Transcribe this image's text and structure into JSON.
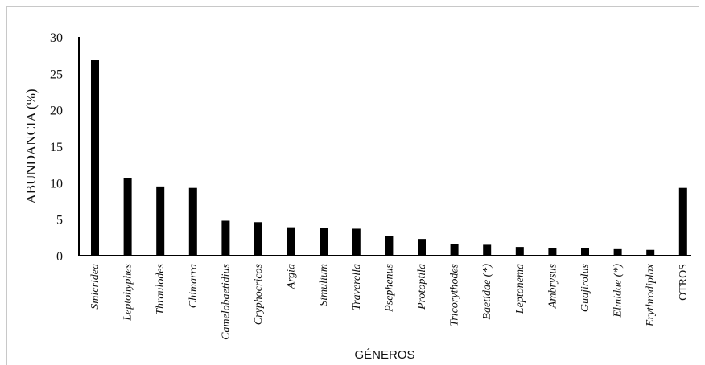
{
  "chart_data": {
    "type": "bar",
    "title": "",
    "xlabel": "GÉNEROS",
    "ylabel": "ABUNDANCIA (%)",
    "ylim": [
      0,
      30
    ],
    "yticks": [
      0,
      5,
      10,
      15,
      20,
      25,
      30
    ],
    "grid": false,
    "legend": "none",
    "bar_color": "#000000",
    "categories": [
      "Smicridea",
      "Leptohyphes",
      "Thraulodes",
      "Chimarra",
      "Camelobaetidius",
      "Cryphocricos",
      "Argia",
      "Simulium",
      "Traverella",
      "Psephenus",
      "Protoptila",
      "Tricorythodes",
      "Baetidae (*)",
      "Leptonema",
      "Ambrysus",
      "Guajirolus",
      "Elmidae (*)",
      "Erythrodiplax",
      "OTROS"
    ],
    "italic": [
      true,
      true,
      true,
      true,
      true,
      true,
      true,
      true,
      true,
      true,
      true,
      true,
      true,
      true,
      true,
      true,
      true,
      true,
      false
    ],
    "values": [
      26.8,
      10.6,
      9.5,
      9.3,
      4.8,
      4.6,
      3.9,
      3.8,
      3.7,
      2.7,
      2.3,
      1.6,
      1.5,
      1.2,
      1.1,
      1.0,
      0.9,
      0.8,
      9.3
    ]
  }
}
